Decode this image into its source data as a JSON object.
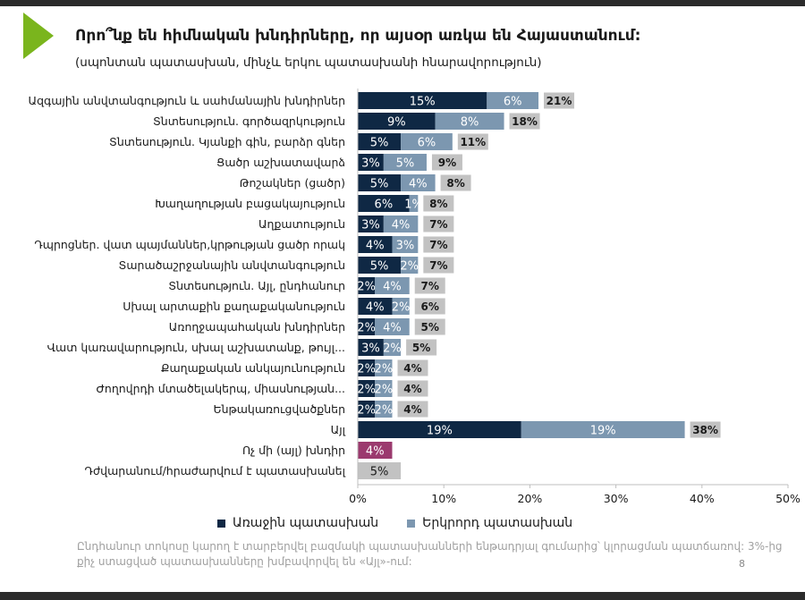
{
  "header": {
    "title": "Որո՞նք են հիմնական խնդիրները, որ այսօր առկա են Հայաստանում:",
    "subtitle": "(սպոնտան պատասխան, մինչև երկու պատասխանի հնարավորություն)"
  },
  "colors": {
    "first": "#0f2844",
    "second": "#7c97b0",
    "total_box": "#c2c2c2",
    "accent_bar": "#9b3a6e",
    "logo": "#7ab51d"
  },
  "chart_data": {
    "type": "bar",
    "orientation": "horizontal",
    "stacked": true,
    "categories": [
      "Ազգային անվտանգություն և սահմանային խնդիրներ",
      "Տնտեսություն. գործազրկություն",
      "Տնտեսություն. Կյանքի գին, բարձր գներ",
      "Ցածր աշխատավարձ",
      "Թոշակներ (ցածր)",
      "Խաղաղության բացակայություն",
      "Աղքատություն",
      "Դպրոցներ. վատ պայմաններ,կրթության ցածր որակ",
      "Տարածաշրջանային անվտանգություն",
      "Տնտեսություն. Այլ, ընդհանուր",
      "Սխալ արտաքին քաղաքականություն",
      "Առողջապահական խնդիրներ",
      "Վատ կառավարություն, սխալ աշխատանք, թույլ...",
      "Քաղաքական անկայունություն",
      "Ժողովրդի մտածելակերպ, միասնության...",
      "Ենթակառուցվածքներ",
      "Այլ",
      "Ոչ մի (այլ) խնդիր",
      "Դժվարանում/հրաժարվում է պատասխանել"
    ],
    "series": [
      {
        "name": "Առաջին պատասխան",
        "values": [
          15,
          9,
          5,
          3,
          5,
          6,
          3,
          4,
          5,
          2,
          4,
          2,
          3,
          2,
          2,
          2,
          19,
          4,
          5
        ],
        "labels": [
          "15%",
          "9%",
          "5%",
          "3%",
          "5%",
          "6%",
          "3%",
          "4%",
          "5%",
          "2%",
          "4%",
          "2%",
          "3%",
          "2%",
          "2%",
          "2%",
          "19%",
          "4%",
          "5%"
        ]
      },
      {
        "name": "Երկրորդ պատասխան",
        "values": [
          6,
          8,
          6,
          5,
          4,
          1,
          4,
          3,
          2,
          4,
          2,
          4,
          2,
          2,
          2,
          2,
          19,
          null,
          null
        ],
        "labels": [
          "6%",
          "8%",
          "6%",
          "5%",
          "4%",
          "1%",
          "4%",
          "3%",
          "2%",
          "4%",
          "2%",
          "4%",
          "2%",
          "2%",
          "2%",
          "2%",
          "19%",
          "",
          ""
        ]
      }
    ],
    "totals": [
      "21%",
      "18%",
      "11%",
      "9%",
      "8%",
      "8%",
      "7%",
      "7%",
      "7%",
      "7%",
      "6%",
      "5%",
      "5%",
      "4%",
      "4%",
      "4%",
      "38%",
      "",
      ""
    ],
    "special_rows": {
      "Ոչ մի (այլ) խնդիր": "accent",
      "Դժվարանում/հրաժարվում է պատասխանել": "gray"
    },
    "xlim": [
      0,
      50
    ],
    "xticks": [
      "0%",
      "10%",
      "20%",
      "30%",
      "40%",
      "50%"
    ],
    "xtick_values": [
      0,
      10,
      20,
      30,
      40,
      50
    ],
    "xlabel": "",
    "ylabel": "",
    "grid": false,
    "legend_position": "bottom"
  },
  "legend": {
    "first_label": "Առաջին պատասխան",
    "second_label": "Երկրորդ պատասխան"
  },
  "footnote": "Ընդհանուր տոկոսը կարող է տարբերվել բազմակի պատասխանների ենթադրյալ գումարից՝ կլորացման պատճառով: 3%-ից քիչ ստացված պատասխանները խմբավորվել են «Այլ»-ում:",
  "page_number": "8"
}
